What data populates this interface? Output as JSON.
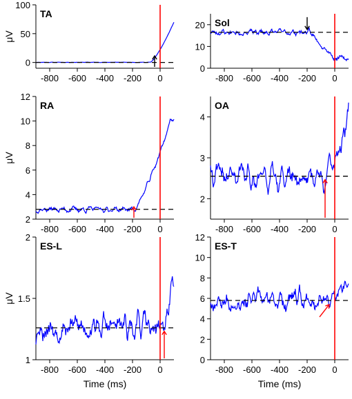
{
  "colors": {
    "trace": "#0000ff",
    "onset": "#ff0000",
    "baseline": "#000000",
    "axis": "#000000"
  },
  "chart_data": [
    {
      "type": "line",
      "title": "TA",
      "xlabel": "",
      "ylabel": "μV",
      "xlim": [
        -900,
        100
      ],
      "ylim": [
        -10,
        100
      ],
      "xticks": [
        -800,
        -600,
        -400,
        -200,
        0
      ],
      "xtick_labels": [
        "-800",
        "-600",
        "-400",
        "-200",
        "0"
      ],
      "yticks": [
        0,
        50,
        100
      ],
      "ytick_labels": [
        "0",
        "50",
        "100"
      ],
      "baseline": 0,
      "onset_line": 0,
      "marker": {
        "x": -40,
        "color": "black",
        "direction": "up"
      },
      "trace": {
        "base": 0.3,
        "noise": 0.4,
        "ramp": {
          "start": -70,
          "end": 100,
          "to": 70
        },
        "seed": 11
      }
    },
    {
      "type": "line",
      "title": "Sol",
      "xlabel": "",
      "ylabel": "",
      "xlim": [
        -900,
        100
      ],
      "ylim": [
        0,
        25
      ],
      "xticks": [
        -800,
        -600,
        -400,
        -200,
        0
      ],
      "xtick_labels": [
        "-800",
        "-600",
        "-400",
        "-200",
        "0"
      ],
      "yticks": [
        0,
        10,
        20
      ],
      "ytick_labels": [
        "0",
        "10",
        "20"
      ],
      "baseline": 16.5,
      "onset_line": 0,
      "marker": {
        "x": -200,
        "color": "black",
        "direction": "down"
      },
      "trace": {
        "base": 16.5,
        "noise": 1.8,
        "ramp": {
          "start": -200,
          "end": 0,
          "to": 4.5
        },
        "seed": 23
      }
    },
    {
      "type": "line",
      "title": "RA",
      "xlabel": "",
      "ylabel": "μV",
      "xlim": [
        -900,
        100
      ],
      "ylim": [
        2,
        12
      ],
      "xticks": [
        -800,
        -600,
        -400,
        -200,
        0
      ],
      "xtick_labels": [
        "-800",
        "-600",
        "-400",
        "-200",
        "0"
      ],
      "yticks": [
        2,
        4,
        6,
        8,
        10,
        12
      ],
      "ytick_labels": [
        "2",
        "4",
        "6",
        "8",
        "10",
        "12"
      ],
      "baseline": 2.8,
      "onset_line": 0,
      "marker": {
        "x": -190,
        "color": "red",
        "direction": "up"
      },
      "trace": {
        "base": 2.8,
        "noise": 0.3,
        "ramp": {
          "start": -190,
          "end": 80,
          "to": 10.2
        },
        "seed": 37
      }
    },
    {
      "type": "line",
      "title": "OA",
      "xlabel": "",
      "ylabel": "",
      "xlim": [
        -900,
        100
      ],
      "ylim": [
        1.5,
        4.5
      ],
      "xticks": [
        -800,
        -600,
        -400,
        -200,
        0
      ],
      "xtick_labels": [
        "-800",
        "-600",
        "-400",
        "-200",
        "0"
      ],
      "yticks": [
        2,
        3,
        4
      ],
      "ytick_labels": [
        "2",
        "3",
        "4"
      ],
      "baseline": 2.55,
      "onset_line": 0,
      "marker": {
        "x": -70,
        "color": "red",
        "direction": "up"
      },
      "trace": {
        "base": 2.55,
        "noise": 0.38,
        "ramp": {
          "start": -70,
          "end": 80,
          "to": 3.8
        },
        "seed": 41
      }
    },
    {
      "type": "line",
      "title": "ES-L",
      "xlabel": "Time (ms)",
      "ylabel": "μV",
      "xlim": [
        -900,
        100
      ],
      "ylim": [
        1,
        2
      ],
      "xticks": [
        -800,
        -600,
        -400,
        -200,
        0
      ],
      "xtick_labels": [
        "-800",
        "-600",
        "-400",
        "-200",
        "0"
      ],
      "yticks": [
        1,
        1.5,
        2
      ],
      "ytick_labels": [
        "1",
        "1.5",
        "2"
      ],
      "baseline": 1.26,
      "onset_line": 0,
      "marker": {
        "x": 30,
        "color": "red",
        "direction": "up"
      },
      "trace": {
        "base": 1.27,
        "noise": 0.13,
        "ramp": {
          "start": 20,
          "end": 90,
          "to": 1.6
        },
        "seed": 53
      }
    },
    {
      "type": "line",
      "title": "ES-T",
      "xlabel": "Time (ms)",
      "ylabel": "",
      "xlim": [
        -900,
        100
      ],
      "ylim": [
        0,
        12
      ],
      "xticks": [
        -800,
        -600,
        -400,
        -200,
        0
      ],
      "xtick_labels": [
        "-800",
        "-600",
        "-400",
        "-200",
        "0"
      ],
      "yticks": [
        0,
        2,
        4,
        6,
        8,
        10,
        12
      ],
      "ytick_labels": [
        "0",
        "2",
        "4",
        "6",
        "8",
        "10",
        "12"
      ],
      "baseline": 5.8,
      "onset_line": 0,
      "marker": {
        "x": -40,
        "color": "red",
        "direction": "diag"
      },
      "trace": {
        "base": 5.8,
        "noise": 1.2,
        "ramp": {
          "start": -20,
          "end": 100,
          "to": 7.6
        },
        "seed": 67
      }
    }
  ]
}
